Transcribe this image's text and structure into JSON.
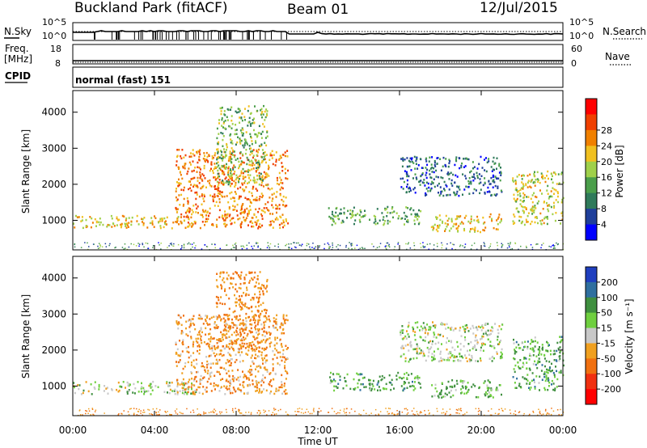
{
  "header": {
    "station": "Buckland Park (fitACF)",
    "beam": "Beam 01",
    "date": "12/Jul/2015"
  },
  "noise_panel": {
    "left_label": "N.Sky",
    "right_label": "N.Search",
    "left_ticks": [
      "10^5",
      "10^0"
    ],
    "right_ticks": [
      "10^5",
      "10^0"
    ]
  },
  "freq_panel": {
    "left_label_1": "Freq.",
    "left_label_2": "[MHz]",
    "right_label": "Nave",
    "left_ticks": [
      "18",
      "8"
    ],
    "right_ticks": [
      "60",
      "0"
    ]
  },
  "cpid_panel": {
    "label": "CPID",
    "value": "normal (fast) 151"
  },
  "colors": {
    "power_scale": [
      "#0000ff",
      "#1f3f9a",
      "#2f7a5a",
      "#4a9e4a",
      "#9fd04a",
      "#f0c020",
      "#f08000",
      "#f04000",
      "#ff0000"
    ],
    "velocity_scale": [
      "#1f3fbf",
      "#2f6f9f",
      "#3f8f3f",
      "#6fcf3f",
      "#c8c8c8",
      "#f0a020",
      "#f07010",
      "#f03010",
      "#ff0000"
    ],
    "gray_scatter": "#c0c0c0"
  },
  "chart_data": [
    {
      "type": "heatmap",
      "name_in_image": "Power",
      "ylabel": "Slant Range [km]",
      "xlabel": "Time UT",
      "yticks": [
        1000,
        2000,
        3000,
        4000
      ],
      "ylim": [
        180,
        4600
      ],
      "xticks": [
        "00:00",
        "04:00",
        "08:00",
        "12:00",
        "16:00",
        "20:00",
        "00:00"
      ],
      "xlim_hours": [
        0,
        24
      ],
      "colorbar": {
        "label": "Power [dB]",
        "ticks": [
          4,
          8,
          12,
          16,
          20,
          24,
          28
        ]
      },
      "echo_regions": [
        {
          "t_start": 0.0,
          "t_end": 6.0,
          "range_low": 800,
          "range_high": 1150,
          "power": 22
        },
        {
          "t_start": 5.0,
          "t_end": 10.5,
          "range_low": 800,
          "range_high": 3000,
          "power": 26
        },
        {
          "t_start": 7.0,
          "t_end": 9.5,
          "range_low": 2000,
          "range_high": 4200,
          "power": 16
        },
        {
          "t_start": 12.5,
          "t_end": 17.0,
          "range_low": 900,
          "range_high": 1400,
          "power": 14
        },
        {
          "t_start": 16.0,
          "t_end": 21.0,
          "range_low": 1700,
          "range_high": 2800,
          "power": 8
        },
        {
          "t_start": 17.5,
          "t_end": 21.0,
          "range_low": 700,
          "range_high": 1200,
          "power": 22
        },
        {
          "t_start": 21.5,
          "t_end": 24.0,
          "range_low": 900,
          "range_high": 2400,
          "power": 20
        }
      ]
    },
    {
      "type": "heatmap",
      "name_in_image": "Velocity",
      "ylabel": "Slant Range [km]",
      "xlabel": "Time UT",
      "yticks": [
        1000,
        2000,
        3000,
        4000
      ],
      "ylim": [
        180,
        4600
      ],
      "xticks": [
        "00:00",
        "04:00",
        "08:00",
        "12:00",
        "16:00",
        "20:00",
        "00:00"
      ],
      "xlim_hours": [
        0,
        24
      ],
      "colorbar": {
        "label": "Velocity [m s⁻¹]",
        "ticks": [
          200,
          100,
          50,
          15,
          -15,
          -50,
          -100,
          -200
        ]
      },
      "echo_regions": [
        {
          "t_start": 0.0,
          "t_end": 6.0,
          "range_low": 800,
          "range_high": 1150,
          "velocity": 0
        },
        {
          "t_start": 5.0,
          "t_end": 10.5,
          "range_low": 800,
          "range_high": 3000,
          "velocity": -60
        },
        {
          "t_start": 7.0,
          "t_end": 9.5,
          "range_low": 2000,
          "range_high": 4200,
          "velocity": -80
        },
        {
          "t_start": 12.5,
          "t_end": 17.0,
          "range_low": 900,
          "range_high": 1400,
          "velocity": 40
        },
        {
          "t_start": 16.0,
          "t_end": 21.0,
          "range_low": 1700,
          "range_high": 2800,
          "velocity": 0
        },
        {
          "t_start": 17.5,
          "t_end": 21.0,
          "range_low": 700,
          "range_high": 1200,
          "velocity": 30
        },
        {
          "t_start": 21.5,
          "t_end": 24.0,
          "range_low": 900,
          "range_high": 2400,
          "velocity": 40
        }
      ]
    }
  ]
}
